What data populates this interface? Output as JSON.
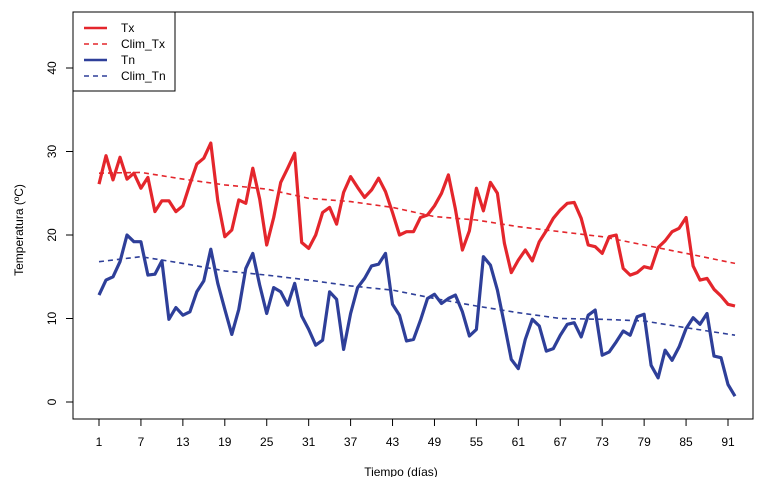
{
  "chart_data": {
    "type": "line",
    "title": "",
    "xlabel": "Tiempo (días)",
    "ylabel": "Temperatura (ºC)",
    "xlim": [
      1,
      92
    ],
    "ylim": [
      0,
      40
    ],
    "x_ticks": [
      1,
      7,
      13,
      19,
      25,
      31,
      37,
      43,
      49,
      55,
      61,
      67,
      73,
      79,
      85,
      91
    ],
    "y_ticks": [
      0,
      10,
      20,
      30,
      40
    ],
    "grid": false,
    "legend_position": "top-left",
    "series": [
      {
        "name": "Tx",
        "color": "#e4262c",
        "style": "solid",
        "values": [
          [
            1,
            26.1
          ],
          [
            2,
            29.5
          ],
          [
            3,
            26.6
          ],
          [
            4,
            29.3
          ],
          [
            5,
            26.7
          ],
          [
            6,
            27.4
          ],
          [
            7,
            25.6
          ],
          [
            8,
            26.9
          ],
          [
            9,
            22.8
          ],
          [
            10,
            24.1
          ],
          [
            11,
            24.1
          ],
          [
            12,
            22.8
          ],
          [
            13,
            23.5
          ],
          [
            14,
            26.1
          ],
          [
            15,
            28.5
          ],
          [
            16,
            29.2
          ],
          [
            17,
            31.0
          ],
          [
            18,
            24.1
          ],
          [
            19,
            19.8
          ],
          [
            20,
            20.6
          ],
          [
            21,
            24.2
          ],
          [
            22,
            23.8
          ],
          [
            23,
            28.0
          ],
          [
            24,
            24.3
          ],
          [
            25,
            18.8
          ],
          [
            26,
            22.1
          ],
          [
            27,
            26.3
          ],
          [
            28,
            28.0
          ],
          [
            29,
            29.8
          ],
          [
            30,
            19.1
          ],
          [
            31,
            18.4
          ],
          [
            32,
            20.0
          ],
          [
            33,
            22.7
          ],
          [
            34,
            23.3
          ],
          [
            35,
            21.3
          ],
          [
            36,
            25.1
          ],
          [
            37,
            27.0
          ],
          [
            38,
            25.7
          ],
          [
            39,
            24.5
          ],
          [
            40,
            25.4
          ],
          [
            41,
            26.8
          ],
          [
            42,
            25.2
          ],
          [
            43,
            22.7
          ],
          [
            44,
            20.0
          ],
          [
            45,
            20.4
          ],
          [
            46,
            20.4
          ],
          [
            47,
            22.1
          ],
          [
            48,
            22.4
          ],
          [
            49,
            23.5
          ],
          [
            50,
            25.0
          ],
          [
            51,
            27.2
          ],
          [
            52,
            23.1
          ],
          [
            53,
            18.2
          ],
          [
            54,
            20.5
          ],
          [
            55,
            25.6
          ],
          [
            56,
            22.9
          ],
          [
            57,
            26.3
          ],
          [
            58,
            25.0
          ],
          [
            59,
            19.0
          ],
          [
            60,
            15.5
          ],
          [
            61,
            17.0
          ],
          [
            62,
            18.2
          ],
          [
            63,
            16.9
          ],
          [
            64,
            19.2
          ],
          [
            65,
            20.5
          ],
          [
            66,
            22.0
          ],
          [
            67,
            23.0
          ],
          [
            68,
            23.8
          ],
          [
            69,
            23.9
          ],
          [
            70,
            22.0
          ],
          [
            71,
            18.8
          ],
          [
            72,
            18.6
          ],
          [
            73,
            17.8
          ],
          [
            74,
            19.8
          ],
          [
            75,
            20.0
          ],
          [
            76,
            16.0
          ],
          [
            77,
            15.2
          ],
          [
            78,
            15.5
          ],
          [
            79,
            16.2
          ],
          [
            80,
            16.0
          ],
          [
            81,
            18.5
          ],
          [
            82,
            19.3
          ],
          [
            83,
            20.4
          ],
          [
            84,
            20.8
          ],
          [
            85,
            22.1
          ],
          [
            86,
            16.3
          ],
          [
            87,
            14.6
          ],
          [
            88,
            14.8
          ],
          [
            89,
            13.5
          ],
          [
            90,
            12.7
          ],
          [
            91,
            11.7
          ],
          [
            92,
            11.5
          ]
        ]
      },
      {
        "name": "Clim_Tx",
        "color": "#e4262c",
        "style": "dashed",
        "values": [
          [
            1,
            27.4
          ],
          [
            7,
            27.5
          ],
          [
            13,
            26.7
          ],
          [
            19,
            26.0
          ],
          [
            25,
            25.5
          ],
          [
            31,
            24.4
          ],
          [
            37,
            24.0
          ],
          [
            43,
            23.3
          ],
          [
            49,
            22.2
          ],
          [
            55,
            21.8
          ],
          [
            61,
            21.0
          ],
          [
            67,
            20.4
          ],
          [
            73,
            19.8
          ],
          [
            79,
            18.8
          ],
          [
            85,
            17.8
          ],
          [
            92,
            16.6
          ]
        ]
      },
      {
        "name": "Tn",
        "color": "#2e3f99",
        "style": "solid",
        "values": [
          [
            1,
            12.8
          ],
          [
            2,
            14.6
          ],
          [
            3,
            15.0
          ],
          [
            4,
            16.8
          ],
          [
            5,
            20.0
          ],
          [
            6,
            19.2
          ],
          [
            7,
            19.2
          ],
          [
            8,
            15.2
          ],
          [
            9,
            15.3
          ],
          [
            10,
            16.9
          ],
          [
            11,
            9.9
          ],
          [
            12,
            11.3
          ],
          [
            13,
            10.4
          ],
          [
            14,
            10.8
          ],
          [
            15,
            13.2
          ],
          [
            16,
            14.5
          ],
          [
            17,
            18.3
          ],
          [
            18,
            14.2
          ],
          [
            19,
            11.1
          ],
          [
            20,
            8.1
          ],
          [
            21,
            11.1
          ],
          [
            22,
            16.0
          ],
          [
            23,
            17.8
          ],
          [
            24,
            14.0
          ],
          [
            25,
            10.6
          ],
          [
            26,
            13.7
          ],
          [
            27,
            13.2
          ],
          [
            28,
            11.6
          ],
          [
            29,
            14.2
          ],
          [
            30,
            10.3
          ],
          [
            31,
            8.7
          ],
          [
            32,
            6.8
          ],
          [
            33,
            7.4
          ],
          [
            34,
            13.2
          ],
          [
            35,
            12.3
          ],
          [
            36,
            6.3
          ],
          [
            37,
            10.6
          ],
          [
            38,
            13.7
          ],
          [
            39,
            14.8
          ],
          [
            40,
            16.3
          ],
          [
            41,
            16.5
          ],
          [
            42,
            17.8
          ],
          [
            43,
            11.7
          ],
          [
            44,
            10.4
          ],
          [
            45,
            7.3
          ],
          [
            46,
            7.5
          ],
          [
            47,
            9.8
          ],
          [
            48,
            12.4
          ],
          [
            49,
            12.9
          ],
          [
            50,
            11.8
          ],
          [
            51,
            12.4
          ],
          [
            52,
            12.8
          ],
          [
            53,
            10.8
          ],
          [
            54,
            7.9
          ],
          [
            55,
            8.7
          ],
          [
            56,
            17.4
          ],
          [
            57,
            16.4
          ],
          [
            58,
            13.4
          ],
          [
            59,
            9.3
          ],
          [
            60,
            5.1
          ],
          [
            61,
            4.0
          ],
          [
            62,
            7.5
          ],
          [
            63,
            9.9
          ],
          [
            64,
            9.1
          ],
          [
            65,
            6.1
          ],
          [
            66,
            6.4
          ],
          [
            67,
            8.0
          ],
          [
            68,
            9.3
          ],
          [
            69,
            9.5
          ],
          [
            70,
            7.8
          ],
          [
            71,
            10.4
          ],
          [
            72,
            11.0
          ],
          [
            73,
            5.6
          ],
          [
            74,
            6.0
          ],
          [
            75,
            7.2
          ],
          [
            76,
            8.5
          ],
          [
            77,
            8.0
          ],
          [
            78,
            10.2
          ],
          [
            79,
            10.5
          ],
          [
            80,
            4.4
          ],
          [
            81,
            2.9
          ],
          [
            82,
            6.2
          ],
          [
            83,
            5.0
          ],
          [
            84,
            6.6
          ],
          [
            85,
            8.8
          ],
          [
            86,
            10.1
          ],
          [
            87,
            9.3
          ],
          [
            88,
            10.6
          ],
          [
            89,
            5.5
          ],
          [
            90,
            5.3
          ],
          [
            91,
            2.1
          ],
          [
            92,
            0.7
          ]
        ]
      },
      {
        "name": "Clim_Tn",
        "color": "#2e3f99",
        "style": "dashed",
        "values": [
          [
            1,
            16.8
          ],
          [
            7,
            17.4
          ],
          [
            13,
            16.6
          ],
          [
            19,
            15.7
          ],
          [
            25,
            15.2
          ],
          [
            31,
            14.6
          ],
          [
            37,
            13.9
          ],
          [
            43,
            13.4
          ],
          [
            49,
            12.4
          ],
          [
            55,
            11.5
          ],
          [
            61,
            10.7
          ],
          [
            67,
            10.0
          ],
          [
            73,
            9.9
          ],
          [
            79,
            9.7
          ],
          [
            85,
            8.9
          ],
          [
            92,
            8.0
          ]
        ]
      }
    ]
  }
}
